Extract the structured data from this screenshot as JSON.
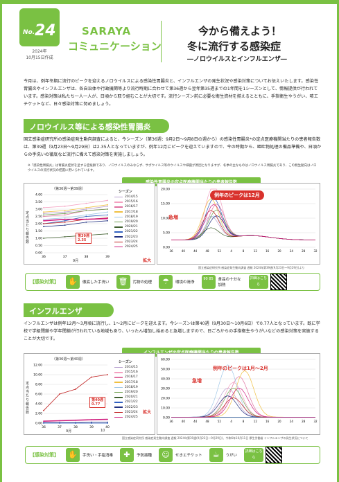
{
  "header": {
    "issue_label": "No.",
    "issue_number": "24",
    "year": "2024年",
    "date": "10月15日作成",
    "brand": "SARAYA",
    "brand_sub": "コミュニケーション",
    "title_line1": "今から備えよう！",
    "title_line2": "冬に流行する感染症",
    "title_line3": "―ノロウイルスとインフルエンザ―"
  },
  "intro": "今月は、例年冬期に流行のピークを迎えるノロウイルスによる感染性胃腸炎と、インフルエンザの発生状況や感染対策についてお伝えいたします。感染性胃腸炎やインフルエンザは、各自治体や行政機関等より流行時期に合わせて第36週から翌年第35週までの1年間を1シーズンとして、情報提供が行われています。感染対策は私たち一人一人が、日頃から取り組むことが大切です。流行シーズン前に必要な衛生資材を揃えるとともに、手指衛生やうがい、咳エチケットなど、日々感染対策に努めましょう。",
  "noro": {
    "heading": "ノロウイルス等による感染性胃腸炎",
    "para": "国立感染症研究所の感染症発生動向調査によると、今シーズン（第36週：9月2日～9月8日の週から）の感染性胃腸炎*の定点医療機関当たりの患者報告数は、第39週（9月23日～9月29日）は2.35人となっていますが、例年12月にピークを迎えていますので、今の時期から、嘔吐物処理の備品準備や、日頃からの手洗いの徹底など流行に備えて感染対策を実施しましょう。",
    "note": "※「感染性胃腸炎」は胃腸炎症状を呈する症候群であり、ノロウイルスのみならず、サポウイルス等のウイルスや細菌が原因となりますが、冬季の主なものはノロウイルス胃腸炎であり、この発生動向はノロウイルスの流行状況の把握に用いられています。",
    "chart_title": "感染性胃腸炎の定点医療機関当たりの患者報告数",
    "small_label": "（第36週～第39週）",
    "ylabel": "定点当たり報告数",
    "series_label": "シーズン",
    "callout": "例年のピークは12月",
    "rise_label": "急増",
    "zoom_label": "拡大",
    "month_label": "9月",
    "point_label": "第39週",
    "point_value": "2.35",
    "source": "国立感染症研究所 感染症発生動向調査 週報 2024年第39週(9月23日～9月29日)より"
  },
  "measures1": {
    "label": "【感染対策】",
    "items": [
      "徹底した手洗い",
      "汚物の処理",
      "環境の清浄",
      "食品の十分な加熱"
    ],
    "detail": "詳細はこちら",
    "heat": "90 85"
  },
  "flu": {
    "heading": "インフルエンザ",
    "para": "インフルエンザは例年12月～3月頃に流行し、1～2月にピークを迎えます。今シーズンは第40週（9月30日～10月6日）で0.77人となっています。既に学校で学級閉鎖や学年閉鎖が行われている地域もあり、いったん増加し始めると急増しますので、日ごろからの手指衛生やうがいなどの感染対策を実施することが大切です。",
    "chart_title": "インフルエンザの定点医療機関当たりの患者報告数",
    "small_label": "（第36週～第40週）",
    "ylabel": "定点当たり報告数",
    "series_label": "シーズン",
    "callout": "例年のピークは1月～2月",
    "rise_label": "急増",
    "zoom_label": "拡大",
    "month_label": "9月",
    "month_label2": "10",
    "point_label": "第40週",
    "point_value": "0.77",
    "source": "国立感染症研究所 感染症発生動向調査 週報 2024年第39週(9月23日～9月29日)、今和6年10月11日 厚生労働省 インフルエンザの発生状況について"
  },
  "measures2": {
    "label": "【感染対策】",
    "items": [
      "手洗い・手指消毒",
      "予防接種",
      "せきエチケット",
      "うがい"
    ],
    "detail": "詳細はこちら"
  },
  "seasons": [
    "2014/15",
    "2015/16",
    "2016/17",
    "2017/18",
    "2018/19",
    "2019/20",
    "2020/21",
    "2021/22",
    "2022/23",
    "2023/24",
    "2024/25"
  ],
  "colors": [
    "#b8a0d0",
    "#f4a0c0",
    "#e070a0",
    "#f0c040",
    "#a0c8e8",
    "#70a050",
    "#406030",
    "#3060c0",
    "#203080",
    "#c02020",
    "#d02080"
  ],
  "chart_data": [
    {
      "type": "line",
      "title": "感染性胃腸炎の定点医療機関当たりの患者報告数",
      "x": [
        "36",
        "37",
        "38",
        "39"
      ],
      "xlabel": "週",
      "ylabel": "定点当たり報告数",
      "ylim": [
        0,
        4.0
      ],
      "series": [
        {
          "name": "2014/15",
          "values": [
            2.7,
            2.8,
            3.0,
            3.2
          ]
        },
        {
          "name": "2015/16",
          "values": [
            3.1,
            3.2,
            3.4,
            3.6
          ]
        },
        {
          "name": "2016/17",
          "values": [
            2.5,
            2.6,
            2.9,
            3.0
          ]
        },
        {
          "name": "2017/18",
          "values": [
            2.8,
            2.9,
            3.1,
            3.3
          ]
        },
        {
          "name": "2018/19",
          "values": [
            2.3,
            2.4,
            2.6,
            2.8
          ]
        },
        {
          "name": "2019/20",
          "values": [
            2.6,
            2.7,
            2.9,
            3.0
          ]
        },
        {
          "name": "2020/21",
          "values": [
            1.0,
            1.1,
            1.2,
            1.3
          ]
        },
        {
          "name": "2021/22",
          "values": [
            2.0,
            2.2,
            2.5,
            2.6
          ]
        },
        {
          "name": "2022/23",
          "values": [
            1.8,
            1.9,
            2.1,
            2.2
          ]
        },
        {
          "name": "2023/24",
          "values": [
            2.0,
            2.1,
            2.3,
            2.4
          ]
        },
        {
          "name": "2024/25",
          "values": [
            2.2,
            2.3,
            2.3,
            2.35
          ]
        }
      ]
    },
    {
      "type": "line",
      "title": "インフルエンザの定点医療機関当たりの患者報告数",
      "x": [
        "36",
        "37",
        "38",
        "39",
        "40"
      ],
      "xlabel": "週",
      "ylabel": "定点当たり報告数",
      "ylim": [
        0,
        12.0
      ],
      "series": [
        {
          "name": "2023/24",
          "values": [
            2.6,
            6.0,
            7.0,
            9.5,
            10.0
          ]
        },
        {
          "name": "2024/25",
          "values": [
            0.4,
            0.5,
            0.6,
            0.7,
            0.77
          ]
        },
        {
          "name": "2022/23",
          "values": [
            0.1,
            0.1,
            0.1,
            0.2,
            0.2
          ]
        },
        {
          "name": "2021/22",
          "values": [
            0.0,
            0.0,
            0.0,
            0.0,
            0.0
          ]
        }
      ]
    }
  ]
}
